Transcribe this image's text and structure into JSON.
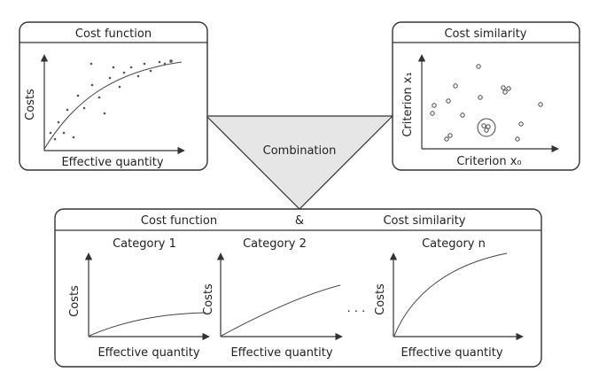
{
  "top_left": {
    "title": "Cost function",
    "ylabel": "Costs",
    "xlabel": "Effective quantity"
  },
  "top_right": {
    "title": "Cost similarity",
    "ylabel": "Criterion x₁",
    "xlabel": "Criterion x₀"
  },
  "combination": {
    "label": "Combination"
  },
  "bottom": {
    "title_left": "Cost function",
    "title_amp": "&",
    "title_right": "Cost similarity",
    "ellipsis": ". . .",
    "panels": [
      {
        "title": "Category 1",
        "ylabel": "Costs",
        "xlabel": "Effective quantity"
      },
      {
        "title": "Category 2",
        "ylabel": "Costs",
        "xlabel": "Effective quantity"
      },
      {
        "title": "Category n",
        "ylabel": "Costs",
        "xlabel": "Effective quantity"
      }
    ]
  }
}
